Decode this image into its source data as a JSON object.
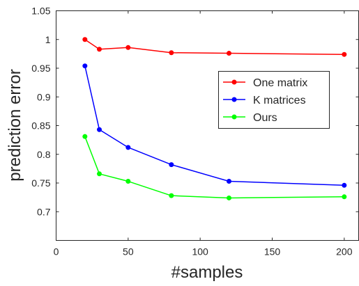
{
  "chart_data": {
    "type": "line",
    "xlabel": "#samples",
    "ylabel": "prediction error",
    "xlim": [
      0,
      210
    ],
    "ylim": [
      0.65,
      1.05
    ],
    "xticks": [
      0,
      50,
      100,
      150,
      200
    ],
    "yticks": [
      0.7,
      0.75,
      0.8,
      0.85,
      0.9,
      0.95,
      1,
      1.05
    ],
    "xtick_labels": [
      "0",
      "50",
      "100",
      "150",
      "200"
    ],
    "ytick_labels": [
      "0.7",
      "0.75",
      "0.8",
      "0.85",
      "0.9",
      "0.95",
      "1",
      "1.05"
    ],
    "grid": false,
    "legend_position": "top-right",
    "x": [
      20,
      30,
      50,
      80,
      120,
      200
    ],
    "series": [
      {
        "name": "One matrix",
        "color": "#ff0000",
        "values": [
          1.0,
          0.983,
          0.986,
          0.977,
          0.976,
          0.974
        ]
      },
      {
        "name": "K matrices",
        "color": "#0000ff",
        "values": [
          0.954,
          0.843,
          0.812,
          0.782,
          0.753,
          0.746
        ]
      },
      {
        "name": "Ours",
        "color": "#00ff00",
        "values": [
          0.831,
          0.766,
          0.753,
          0.728,
          0.724,
          0.726
        ]
      }
    ]
  }
}
